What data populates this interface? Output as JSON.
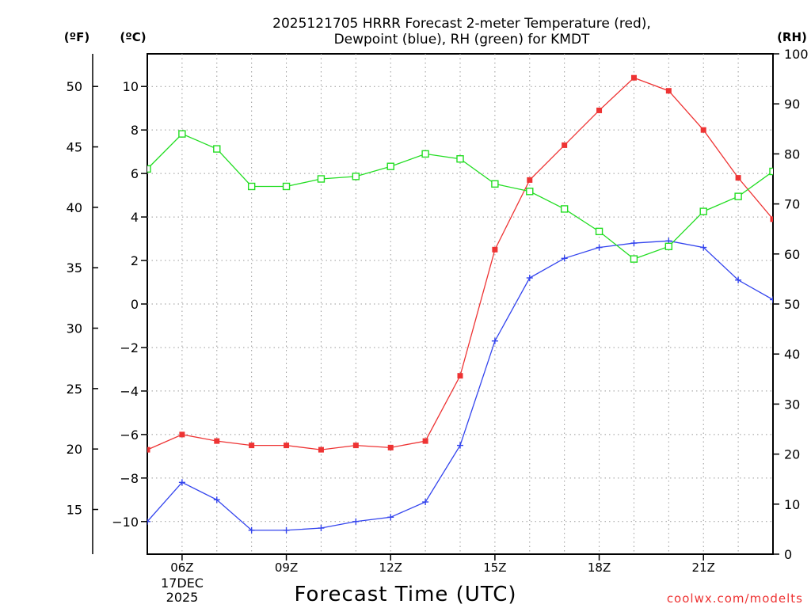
{
  "chart_data": {
    "type": "line",
    "title_line1": "2025121705 HRRR Forecast 2-meter Temperature (red),",
    "title_line2": "Dewpoint (blue), RH (green) for KMDT",
    "xlabel": "Forecast Time (UTC)",
    "watermark": "coolwx.com/modelts",
    "unit_labels": {
      "fahrenheit": "(ºF)",
      "celsius": "(ºC)",
      "rh": "(RH)"
    },
    "date_label": {
      "day": "17DEC",
      "year": "2025"
    },
    "x_hours": [
      5,
      6,
      7,
      8,
      9,
      10,
      11,
      12,
      13,
      14,
      15,
      16,
      17,
      18,
      19,
      20,
      21,
      22,
      23
    ],
    "x_ticks": [
      {
        "hour": 6,
        "label": "06Z"
      },
      {
        "hour": 9,
        "label": "09Z"
      },
      {
        "hour": 12,
        "label": "12Z"
      },
      {
        "hour": 15,
        "label": "15Z"
      },
      {
        "hour": 18,
        "label": "18Z"
      },
      {
        "hour": 21,
        "label": "21Z"
      }
    ],
    "xlim": [
      5,
      23
    ],
    "celsius_axis": {
      "range": [
        -11.5,
        11.5
      ],
      "ticks": [
        -10,
        -8,
        -6,
        -4,
        -2,
        0,
        2,
        4,
        6,
        8,
        10
      ]
    },
    "fahrenheit_ticks": [
      15,
      20,
      25,
      30,
      35,
      40,
      45,
      50
    ],
    "rh_axis": {
      "range": [
        0,
        100
      ],
      "ticks": [
        0,
        10,
        20,
        30,
        40,
        50,
        60,
        70,
        80,
        90,
        100
      ]
    },
    "series": [
      {
        "name": "Temperature",
        "unit": "C",
        "color": "#ee3333",
        "marker": "filled-square",
        "values": [
          -6.7,
          -6.0,
          -6.3,
          -6.5,
          -6.5,
          -6.7,
          -6.5,
          -6.6,
          -6.3,
          -3.3,
          2.5,
          5.7,
          7.3,
          8.9,
          10.4,
          9.8,
          8.0,
          5.8,
          3.9
        ]
      },
      {
        "name": "Dewpoint",
        "unit": "C",
        "color": "#3344ee",
        "marker": "plus",
        "values": [
          -10.0,
          -8.2,
          -9.0,
          -10.4,
          -10.4,
          -10.3,
          -10.0,
          -9.8,
          -9.1,
          -6.5,
          -1.7,
          1.2,
          2.1,
          2.6,
          2.8,
          2.9,
          2.6,
          1.1,
          0.2
        ]
      },
      {
        "name": "RH",
        "unit": "%",
        "color": "#22dd22",
        "marker": "open-square",
        "values": [
          77,
          84,
          81,
          73.5,
          73.5,
          75,
          75.5,
          77.5,
          80,
          79,
          74,
          72.5,
          69,
          64.5,
          59,
          61.5,
          68.5,
          71.5,
          76.5
        ]
      }
    ]
  }
}
